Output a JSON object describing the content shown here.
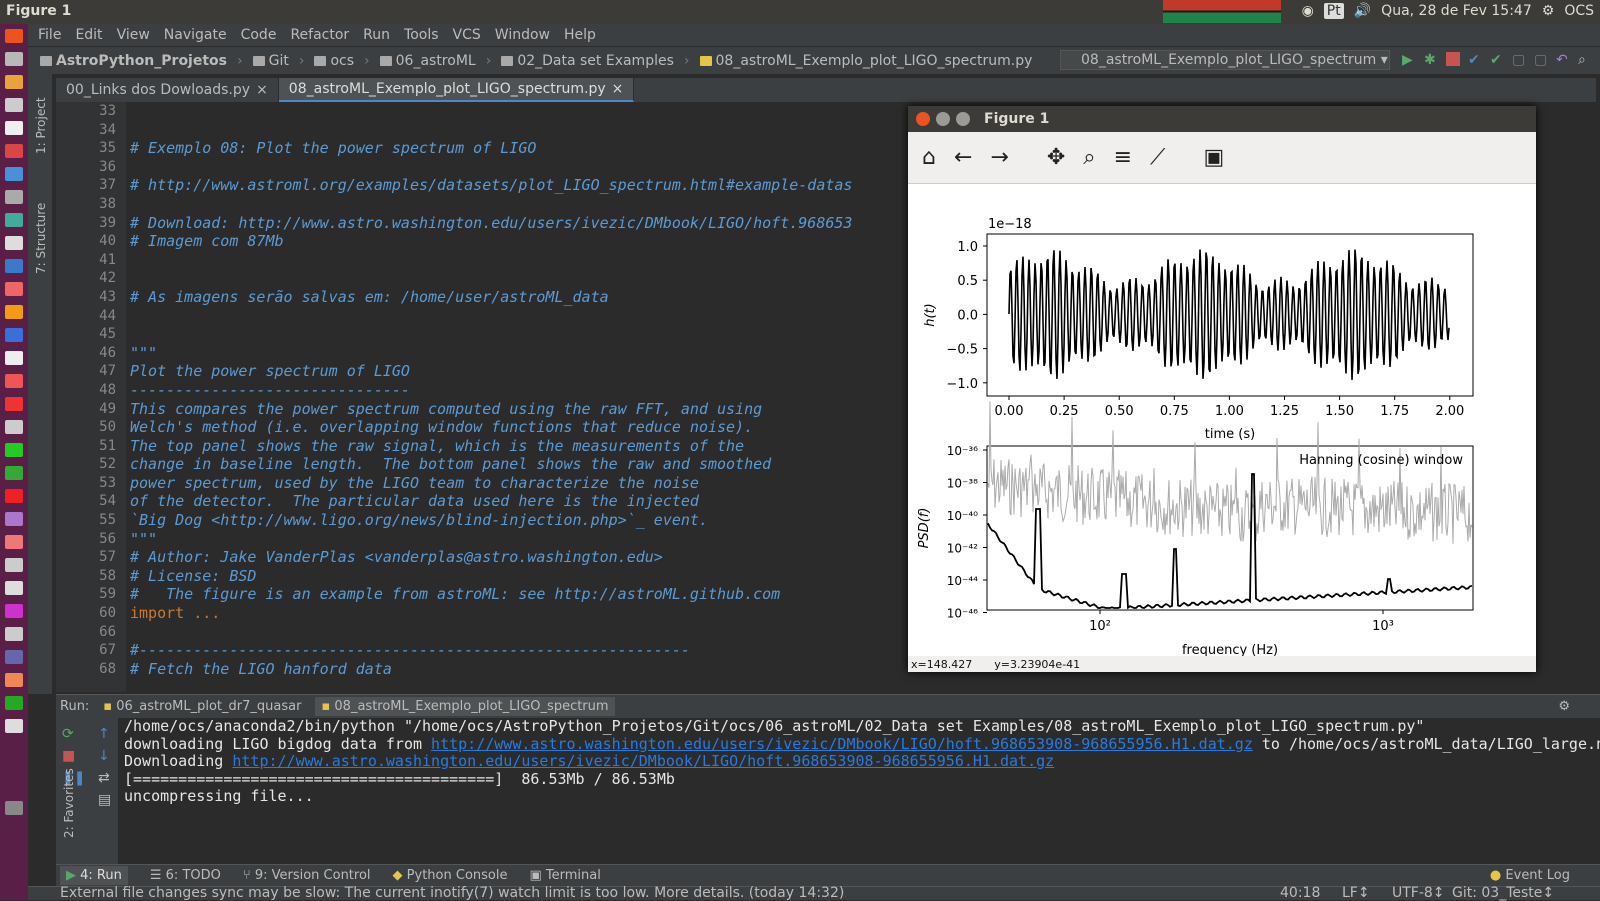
{
  "topbar": {
    "title": "Figure 1",
    "lang": "Pt",
    "datetime": "Qua, 28 de Fev 15:47",
    "user": "OCS"
  },
  "menu": [
    "File",
    "Edit",
    "View",
    "Navigate",
    "Code",
    "Refactor",
    "Run",
    "Tools",
    "VCS",
    "Window",
    "Help"
  ],
  "breadcrumb": [
    "AstroPython_Projetos",
    "Git",
    "ocs",
    "06_astroML",
    "02_Data set Examples",
    "08_astroML_Exemplo_plot_LIGO_spectrum.py"
  ],
  "run_config": "08_astroML_Exemplo_plot_LIGO_spectrum",
  "left_tools": {
    "project": "1: Project",
    "structure": "7: Structure",
    "favorites": "2: Favorites"
  },
  "tabs": [
    {
      "label": "00_Links dos Dowloads.py"
    },
    {
      "label": "08_astroML_Exemplo_plot_LIGO_spectrum.py"
    }
  ],
  "line_numbers": [
    "33",
    "34",
    "35",
    "36",
    "37",
    "38",
    "39",
    "40",
    "41",
    "42",
    "43",
    "44",
    "45",
    "46",
    "47",
    "48",
    "49",
    "50",
    "51",
    "52",
    "53",
    "54",
    "55",
    "56",
    "57",
    "58",
    "59",
    "60",
    "66",
    "67",
    "68"
  ],
  "code": [
    "",
    "",
    "# Exemplo 08: Plot the power spectrum of LIGO",
    "",
    "# http://www.astroml.org/examples/datasets/plot_LIGO_spectrum.html#example-datas",
    "",
    "# Download: http://www.astro.washington.edu/users/ivezic/DMbook/LIGO/hoft.968653",
    "# Imagem com 87Mb",
    "",
    "",
    "# As imagens serão salvas em: /home/user/astroML_data",
    "",
    "",
    "\"\"\"",
    "Plot the power spectrum of LIGO",
    "-------------------------------",
    "This compares the power spectrum computed using the raw FFT, and using",
    "Welch's method (i.e. overlapping window functions that reduce noise).",
    "The top panel shows the raw signal, which is the measurements of the",
    "change in baseline length.  The bottom panel shows the raw and smoothed",
    "power spectrum, used by the LIGO team to characterize the noise",
    "of the detector.  The particular data used here is the injected",
    "`Big Dog <http://www.ligo.org/news/blind-injection.php>`_ event.",
    "\"\"\"",
    "# Author: Jake VanderPlas <vanderplas@astro.washington.edu>",
    "# License: BSD",
    "#   The figure is an example from astroML: see http://astroML.github.com",
    "import ...",
    "",
    "#-------------------------------------------------------------",
    "# Fetch the LIGO hanford data"
  ],
  "figure": {
    "title": "Figure 1",
    "status_x": "x=148.427",
    "status_y": "y=3.23904e-41",
    "top_axis": {
      "offset": "1e−18",
      "ylabel": "h(t)",
      "xlabel": "time (s)",
      "xticks": [
        "0.00",
        "0.25",
        "0.50",
        "0.75",
        "1.00",
        "1.25",
        "1.50",
        "1.75",
        "2.00"
      ],
      "yticks": [
        "1.0",
        "0.5",
        "0.0",
        "−0.5",
        "−1.0"
      ]
    },
    "bottom_axis": {
      "ylabel": "PSD(f)",
      "xlabel": "frequency (Hz)",
      "annotation": "Hanning (cosine) window",
      "yticks": [
        "10⁻³⁶",
        "10⁻³⁸",
        "10⁻⁴⁰",
        "10⁻⁴²",
        "10⁻⁴⁴",
        "10⁻⁴⁶"
      ],
      "xticks": [
        "10²",
        "10³"
      ]
    }
  },
  "run": {
    "label": "Run:",
    "tabs": [
      "06_astroML_plot_dr7_quasar",
      "08_astroML_Exemplo_plot_LIGO_spectrum"
    ]
  },
  "console": {
    "l1": "/home/ocs/anaconda2/bin/python \"/home/ocs/AstroPython_Projetos/Git/ocs/06_astroML/02_Data set Examples/08_astroML_Exemplo_plot_LIGO_spectrum.py\"",
    "l2a": "downloading LIGO bigdog data from ",
    "l2link": "http://www.astro.washington.edu/users/ivezic/DMbook/LIGO/hoft.968653908-968655956.H1.dat.gz",
    "l2b": " to /home/ocs/astroML_data/LIGO_large.n",
    "l3a": "Downloading ",
    "l3link": "http://www.astro.washington.edu/users/ivezic/DMbook/LIGO/hoft.968653908-968655956.H1.dat.gz",
    "l4": "[========================================]  86.53Mb / 86.53Mb",
    "l5": "uncompressing file..."
  },
  "bottom_tools": [
    "4: Run",
    "6: TODO",
    "9: Version Control",
    "Python Console",
    "Terminal",
    "Event Log"
  ],
  "status": {
    "message": "External file changes sync may be slow: The current inotify(7) watch limit is too low. More details. (today 14:32)",
    "pos": "40:18",
    "le": "LF↕",
    "enc": "UTF-8↕",
    "git": "Git: 03_Teste↕"
  }
}
